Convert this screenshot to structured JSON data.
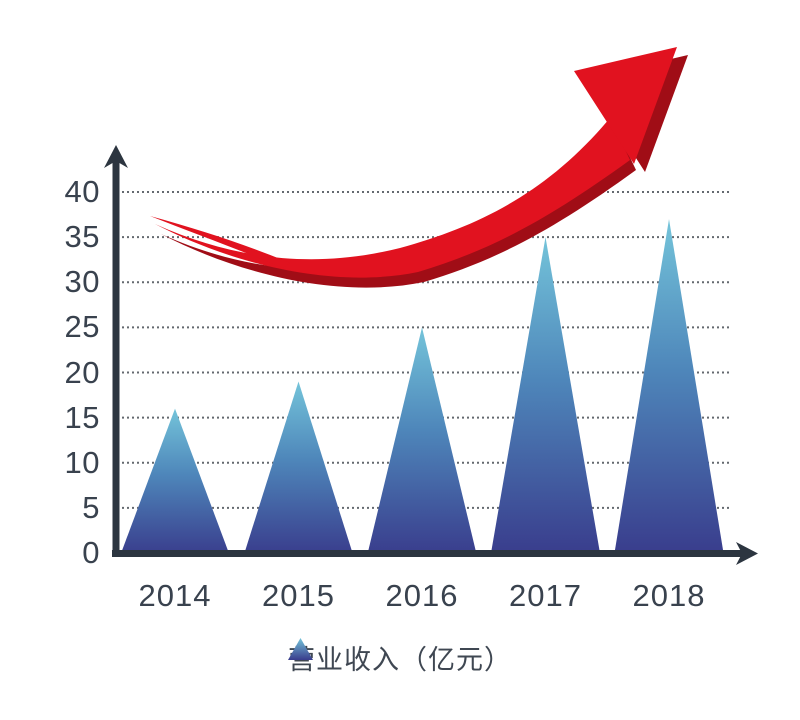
{
  "chart_data": {
    "type": "bar",
    "mark_shape": "triangle-peak",
    "categories": [
      "2014",
      "2015",
      "2016",
      "2017",
      "2018"
    ],
    "values": [
      16,
      19,
      25,
      35,
      37
    ],
    "series_name": "营业收入",
    "unit": "亿元",
    "legend_label": "营业收入（亿元）",
    "title": "",
    "xlabel": "",
    "ylabel": "",
    "ylim": [
      0,
      40
    ],
    "yticks": [
      0,
      5,
      10,
      15,
      20,
      25,
      30,
      35,
      40
    ],
    "grid": "horizontal-dotted",
    "legend_position": "bottom-center",
    "annotation": "red upward curved swoosh arrow above peaks"
  },
  "colors": {
    "background": "#ffffff",
    "triangle_top": "#74c4da",
    "triangle_mid": "#4e86ba",
    "triangle_bottom": "#393c8c",
    "arrow_red": "#e1121f",
    "arrow_dark_red": "#a00d16",
    "axis": "#2c3540",
    "gridline": "#64696f",
    "tick_text": "#39424e",
    "legend_text": "#3f4752"
  }
}
